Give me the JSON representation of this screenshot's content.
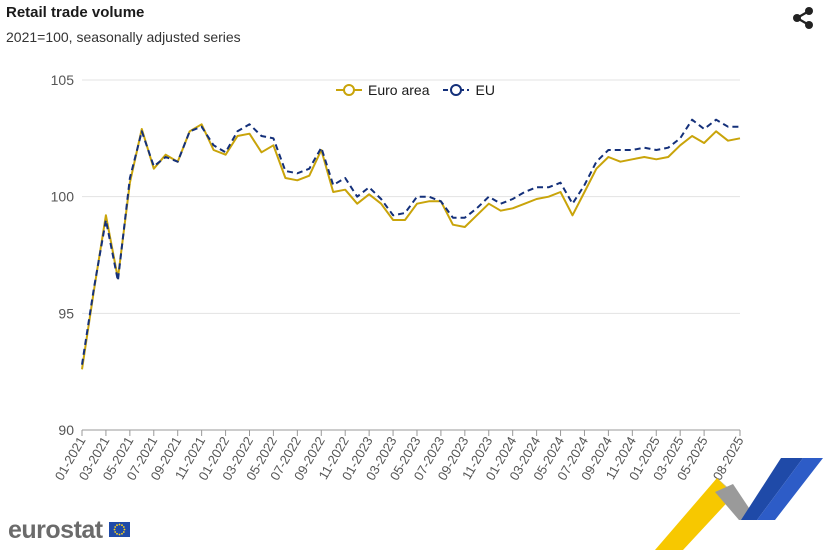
{
  "header": {
    "title": "Retail trade volume",
    "subtitle": "2021=100, seasonally adjusted series"
  },
  "branding": {
    "logo": "eurostat"
  },
  "icons": {
    "share": "share-icon",
    "flag": "eu-flag-icon"
  },
  "chart_data": {
    "type": "line",
    "title": "Retail trade volume",
    "subtitle": "2021=100, seasonally adjusted series",
    "xlabel": "",
    "ylabel": "",
    "ylim": [
      90,
      105
    ],
    "yticks": [
      90,
      95,
      100,
      105
    ],
    "grid": true,
    "legend_position": "top",
    "x": [
      "01-2021",
      "02-2021",
      "03-2021",
      "04-2021",
      "05-2021",
      "06-2021",
      "07-2021",
      "08-2021",
      "09-2021",
      "10-2021",
      "11-2021",
      "12-2021",
      "01-2022",
      "02-2022",
      "03-2022",
      "04-2022",
      "05-2022",
      "06-2022",
      "07-2022",
      "08-2022",
      "09-2022",
      "10-2022",
      "11-2022",
      "12-2022",
      "01-2023",
      "02-2023",
      "03-2023",
      "04-2023",
      "05-2023",
      "06-2023",
      "07-2023",
      "08-2023",
      "09-2023",
      "10-2023",
      "11-2023",
      "12-2023",
      "01-2024",
      "02-2024",
      "03-2024",
      "04-2024",
      "05-2024",
      "06-2024",
      "07-2024",
      "08-2024",
      "09-2024",
      "10-2024",
      "11-2024",
      "12-2024",
      "01-2025",
      "02-2025",
      "03-2025",
      "04-2025",
      "05-2025",
      "06-2025",
      "07-2025",
      "08-2025"
    ],
    "xtick_labels": [
      "01-2021",
      "03-2021",
      "05-2021",
      "07-2021",
      "09-2021",
      "11-2021",
      "01-2022",
      "03-2022",
      "05-2022",
      "07-2022",
      "09-2022",
      "11-2022",
      "01-2023",
      "03-2023",
      "05-2023",
      "07-2023",
      "09-2023",
      "11-2023",
      "01-2024",
      "03-2024",
      "05-2024",
      "07-2024",
      "09-2024",
      "11-2024",
      "01-2025",
      "03-2025",
      "05-2025",
      "08-2025"
    ],
    "series": [
      {
        "name": "Euro area",
        "color": "#c9a40a",
        "style": "solid",
        "values": [
          92.6,
          96.0,
          99.2,
          96.5,
          100.6,
          102.9,
          101.2,
          101.8,
          101.5,
          102.8,
          103.1,
          102.0,
          101.8,
          102.6,
          102.7,
          101.9,
          102.2,
          100.8,
          100.7,
          100.9,
          102.0,
          100.2,
          100.3,
          99.7,
          100.1,
          99.7,
          99.0,
          99.0,
          99.7,
          99.8,
          99.8,
          98.8,
          98.7,
          99.2,
          99.7,
          99.4,
          99.5,
          99.7,
          99.9,
          100.0,
          100.2,
          99.2,
          100.2,
          101.2,
          101.7,
          101.5,
          101.6,
          101.7,
          101.6,
          101.7,
          102.2,
          102.6,
          102.3,
          102.8,
          102.4,
          102.5
        ]
      },
      {
        "name": "EU",
        "color": "#14307a",
        "style": "dashed",
        "values": [
          92.8,
          96.1,
          99.0,
          96.4,
          100.8,
          102.8,
          101.3,
          101.7,
          101.5,
          102.8,
          103.0,
          102.2,
          101.9,
          102.8,
          103.1,
          102.6,
          102.5,
          101.1,
          101.0,
          101.2,
          102.1,
          100.5,
          100.8,
          100.0,
          100.4,
          99.9,
          99.2,
          99.3,
          100.0,
          100.0,
          99.8,
          99.1,
          99.1,
          99.5,
          100.0,
          99.7,
          99.9,
          100.2,
          100.4,
          100.4,
          100.6,
          99.7,
          100.5,
          101.5,
          102.0,
          102.0,
          102.0,
          102.1,
          102.0,
          102.1,
          102.5,
          103.3,
          102.9,
          103.3,
          103.0,
          103.0
        ]
      }
    ]
  }
}
